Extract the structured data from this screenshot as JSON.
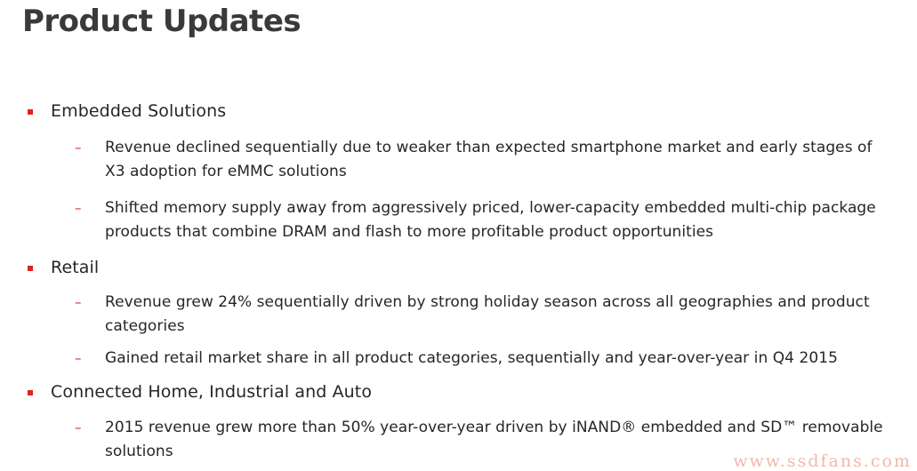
{
  "page": {
    "title": "Product Updates"
  },
  "sections": [
    {
      "label": "Embedded Solutions",
      "items": [
        "Revenue declined sequentially due to weaker than expected smartphone market and early stages of X3 adoption for eMMC solutions",
        "Shifted memory supply away from aggressively priced, lower-capacity embedded multi-chip package products that combine DRAM and flash to more profitable product opportunities"
      ]
    },
    {
      "label": "Retail",
      "items": [
        "Revenue grew 24% sequentially driven by strong holiday season across all geographies and product categories",
        "Gained retail market share in all product categories, sequentially and year-over-year in Q4 2015"
      ]
    },
    {
      "label": "Connected Home, Industrial and Auto",
      "items": [
        "2015 revenue grew more than 50% year-over-year driven by iNAND® embedded and SD™ removable solutions"
      ]
    }
  ],
  "markers": {
    "dash": "–"
  },
  "watermark": "www.ssdfans.com",
  "colors": {
    "accent": "#e2231a",
    "text": "#262626",
    "title": "#3a3a3a"
  }
}
